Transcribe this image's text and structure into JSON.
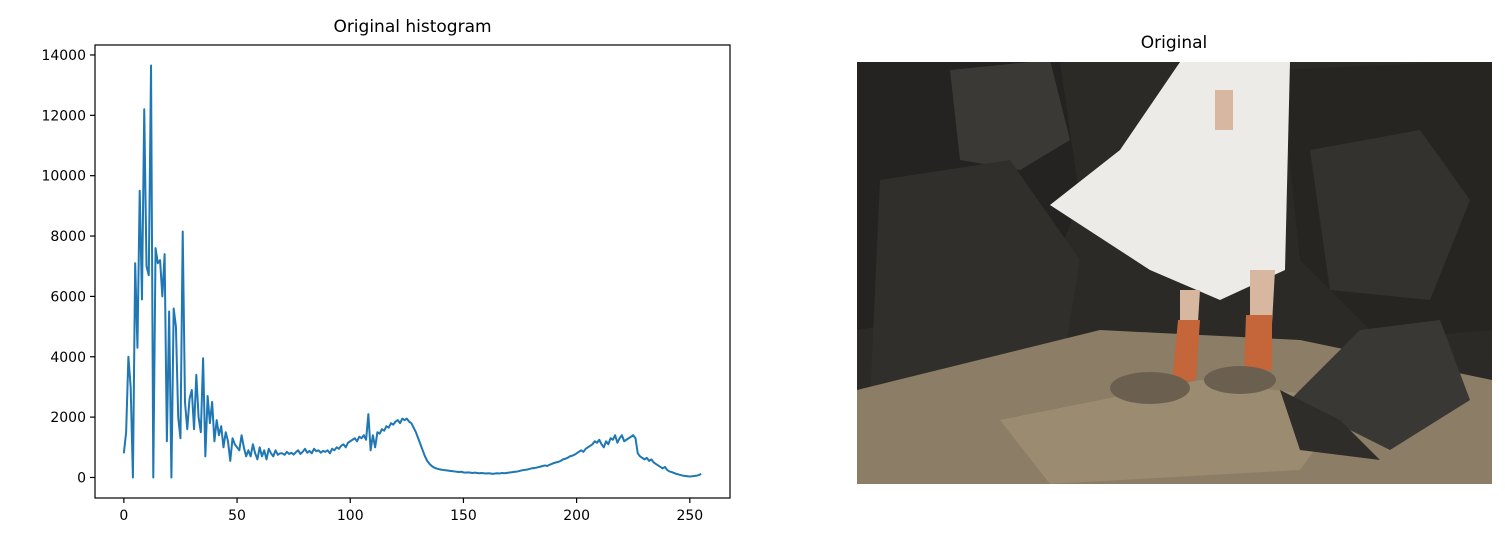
{
  "chart_data": [
    {
      "type": "line",
      "title": "Original histogram",
      "color": "#1f77b4",
      "xlim": [
        -12.75,
        267.75
      ],
      "ylim": [
        -680,
        14330
      ],
      "xticks": [
        0,
        50,
        100,
        150,
        200,
        250
      ],
      "yticks": [
        0,
        2000,
        4000,
        6000,
        8000,
        10000,
        12000,
        14000
      ],
      "x": [
        0,
        1,
        2,
        3,
        4,
        5,
        6,
        7,
        8,
        9,
        10,
        11,
        12,
        13,
        14,
        15,
        16,
        17,
        18,
        19,
        20,
        21,
        22,
        23,
        24,
        25,
        26,
        27,
        28,
        29,
        30,
        31,
        32,
        33,
        34,
        35,
        36,
        37,
        38,
        39,
        40,
        41,
        42,
        43,
        44,
        45,
        46,
        47,
        48,
        49,
        50,
        51,
        52,
        53,
        54,
        55,
        56,
        57,
        58,
        59,
        60,
        61,
        62,
        63,
        64,
        65,
        66,
        67,
        68,
        69,
        70,
        71,
        72,
        73,
        74,
        75,
        76,
        77,
        78,
        79,
        80,
        81,
        82,
        83,
        84,
        85,
        86,
        87,
        88,
        89,
        90,
        91,
        92,
        93,
        94,
        95,
        96,
        97,
        98,
        99,
        100,
        101,
        102,
        103,
        104,
        105,
        106,
        107,
        108,
        109,
        110,
        111,
        112,
        113,
        114,
        115,
        116,
        117,
        118,
        119,
        120,
        121,
        122,
        123,
        124,
        125,
        126,
        127,
        128,
        129,
        130,
        131,
        132,
        133,
        134,
        135,
        136,
        137,
        138,
        139,
        140,
        141,
        142,
        143,
        144,
        145,
        146,
        147,
        148,
        149,
        150,
        151,
        152,
        153,
        154,
        155,
        156,
        157,
        158,
        159,
        160,
        161,
        162,
        163,
        164,
        165,
        166,
        167,
        168,
        169,
        170,
        171,
        172,
        173,
        174,
        175,
        176,
        177,
        178,
        179,
        180,
        181,
        182,
        183,
        184,
        185,
        186,
        187,
        188,
        189,
        190,
        191,
        192,
        193,
        194,
        195,
        196,
        197,
        198,
        199,
        200,
        201,
        202,
        203,
        204,
        205,
        206,
        207,
        208,
        209,
        210,
        211,
        212,
        213,
        214,
        215,
        216,
        217,
        218,
        219,
        220,
        221,
        222,
        223,
        224,
        225,
        226,
        227,
        228,
        229,
        230,
        231,
        232,
        233,
        234,
        235,
        236,
        237,
        238,
        239,
        240,
        241,
        242,
        243,
        244,
        245,
        246,
        247,
        248,
        249,
        250,
        251,
        252,
        253,
        254,
        255
      ],
      "values": [
        800,
        1500,
        4000,
        3000,
        0,
        7100,
        4300,
        9500,
        5900,
        12200,
        7000,
        6700,
        13650,
        0,
        7600,
        7100,
        7200,
        6000,
        7400,
        1200,
        5500,
        0,
        5600,
        5000,
        2000,
        1300,
        8150,
        2500,
        1600,
        2600,
        2900,
        1600,
        3400,
        2000,
        1500,
        3950,
        700,
        2700,
        1800,
        2500,
        1200,
        1900,
        1400,
        1700,
        1000,
        1500,
        1200,
        550,
        1300,
        1100,
        1000,
        900,
        1400,
        1000,
        700,
        900,
        700,
        1100,
        800,
        600,
        1000,
        700,
        900,
        600,
        950,
        800,
        700,
        900,
        750,
        800,
        800,
        750,
        850,
        780,
        820,
        760,
        840,
        900,
        780,
        850,
        950,
        820,
        880,
        800,
        950,
        870,
        900,
        820,
        880,
        850,
        900,
        800,
        950,
        900,
        1000,
        950,
        1050,
        1100,
        1000,
        1150,
        1200,
        1250,
        1300,
        1200,
        1350,
        1300,
        1400,
        1250,
        2100,
        900,
        1400,
        1000,
        1500,
        1450,
        1600,
        1550,
        1700,
        1650,
        1800,
        1750,
        1850,
        1900,
        1800,
        1950,
        1900,
        1950,
        1850,
        1800,
        1650,
        1500,
        1300,
        1100,
        900,
        700,
        550,
        450,
        380,
        330,
        300,
        280,
        260,
        250,
        240,
        230,
        220,
        210,
        200,
        190,
        180,
        190,
        170,
        160,
        170,
        160,
        150,
        160,
        150,
        140,
        150,
        140,
        130,
        140,
        130,
        120,
        130,
        140,
        130,
        150,
        140,
        150,
        160,
        170,
        180,
        190,
        200,
        220,
        240,
        250,
        260,
        280,
        300,
        310,
        320,
        340,
        360,
        380,
        400,
        380,
        420,
        450,
        480,
        500,
        520,
        550,
        600,
        620,
        650,
        700,
        720,
        750,
        800,
        850,
        900,
        850,
        950,
        1000,
        1050,
        1100,
        1200,
        1150,
        1250,
        1100,
        1000,
        1200,
        1100,
        1300,
        1250,
        1400,
        1150,
        1300,
        1400,
        1200,
        1250,
        1300,
        1350,
        1400,
        1300,
        800,
        700,
        650,
        600,
        650,
        550,
        600,
        500,
        450,
        400,
        350,
        300,
        350,
        250,
        200,
        180,
        150,
        120,
        100,
        80,
        60,
        50,
        40,
        30,
        40,
        50,
        60,
        80,
        120
      ]
    },
    {
      "type": "image",
      "title": "Original"
    }
  ]
}
